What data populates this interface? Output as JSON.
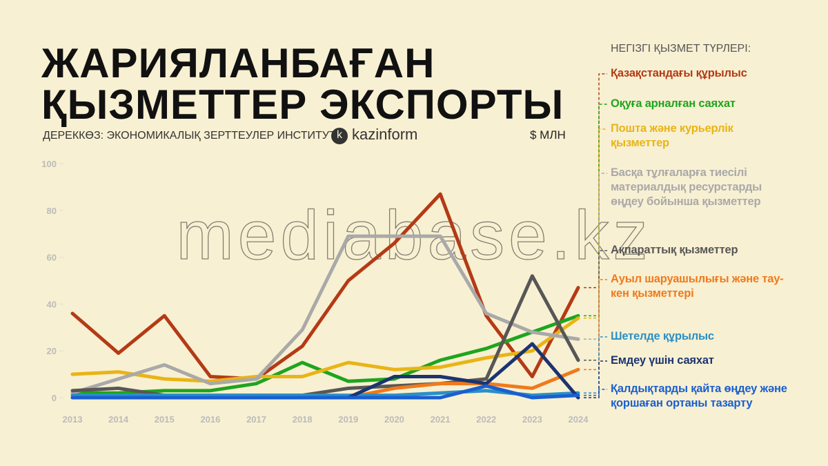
{
  "title_lines": [
    "ЖАРИЯЛАНБАҒАН",
    "ҚЫЗМЕТТЕР ЭКСПОРТЫ"
  ],
  "source": "ДЕРЕККӨЗ: ЭКОНОМИКАЛЫҚ ЗЕРТТЕУЛЕР ИНСТИТУТЫ",
  "logo": "kazinform",
  "watermark": "mediabase.kz",
  "chart_data": {
    "type": "line",
    "unit": "$ МЛН",
    "legend_title": "НЕГІЗГІ ҚЫЗМЕТ ТҮРЛЕРІ:",
    "categories": [
      "2013",
      "2014",
      "2015",
      "2016",
      "2017",
      "2018",
      "2019",
      "2020",
      "2021",
      "2022",
      "2023",
      "2024"
    ],
    "ylim": [
      0,
      100
    ],
    "yticks": [
      0,
      20,
      40,
      60,
      80,
      100
    ],
    "series": [
      {
        "name": "Қазақстандағы құрылыс",
        "color": "#b43a16",
        "values": [
          36,
          19,
          35,
          9,
          8,
          22,
          50,
          66,
          87,
          35,
          9,
          47
        ]
      },
      {
        "name": "Оқуға арналған саяхат",
        "color": "#1ea51e",
        "values": [
          2,
          2,
          3,
          3,
          6,
          15,
          7,
          8,
          16,
          21,
          28,
          35
        ]
      },
      {
        "name": "Пошта және курьерлік қызметтер",
        "color": "#e9b416",
        "values": [
          10,
          11,
          8,
          7,
          9,
          9,
          15,
          12,
          13,
          17,
          20,
          34
        ]
      },
      {
        "name": "Басқа тұлғаларға тиесілі материалдық ресурстарды өңдеу бойынша қызметтер",
        "color": "#a9a9a9",
        "values": [
          2,
          8,
          14,
          6,
          8,
          29,
          69,
          69,
          69,
          36,
          28,
          25
        ]
      },
      {
        "name": "Ақпараттық қызметтер",
        "color": "#575757",
        "values": [
          3,
          4,
          1,
          1,
          1,
          1,
          4,
          5,
          6,
          8,
          52,
          16
        ]
      },
      {
        "name": "Ауыл шаруашылығы және тау-кен қызметтері",
        "color": "#ef7a1c",
        "values": [
          0,
          0,
          0,
          0,
          0,
          0,
          0,
          4,
          6,
          6,
          4,
          12
        ]
      },
      {
        "name": "Шетелде құрылыс",
        "color": "#2b8fc6",
        "values": [
          1,
          1,
          1,
          1,
          1,
          1,
          1,
          1,
          2,
          3,
          1,
          2
        ]
      },
      {
        "name": "Емдеу үшін саяхат",
        "color": "#1b3470",
        "values": [
          0,
          0,
          0,
          0,
          0,
          0,
          0,
          9,
          9,
          6,
          23,
          0
        ]
      },
      {
        "name": "Қалдықтарды қайта өңдеу және қоршаған ортаны тазарту",
        "color": "#1a5fd0",
        "values": [
          0,
          0,
          0,
          0,
          0,
          0,
          0,
          0,
          0,
          5,
          0,
          1
        ]
      }
    ]
  }
}
